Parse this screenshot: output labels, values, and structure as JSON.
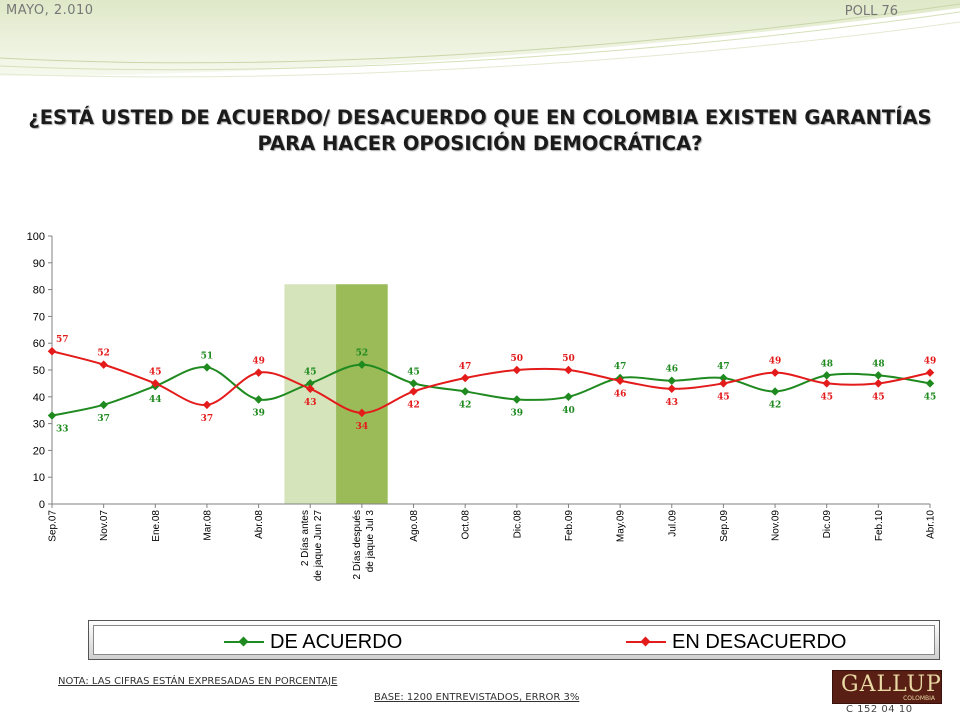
{
  "header": {
    "date": "MAYO, 2.010",
    "poll": "POLL 76"
  },
  "title": "¿ESTÁ USTED DE ACUERDO/ DESACUERDO QUE EN COLOMBIA EXISTEN GARANTÍAS PARA HACER OPOSICIÓN DEMOCRÁTICA?",
  "footer": {
    "note": "NOTA: LAS CIFRAS ESTÁN EXPRESADAS EN PORCENTAJE",
    "base": "BASE: 1200 ENTREVISTADOS, ERROR 3%",
    "logo": "GALLUP",
    "logo_sub": "COLOMBIA",
    "code": "C 152 04 10"
  },
  "chart_data": {
    "type": "line",
    "title": "",
    "xlabel": "",
    "ylabel": "",
    "ylim": [
      0,
      100
    ],
    "yticks": [
      0,
      10,
      20,
      30,
      40,
      50,
      60,
      70,
      80,
      90,
      100
    ],
    "categories": [
      "Sep.07",
      "Nov.07",
      "Ene.08",
      "Mar.08",
      "Abr.08",
      "2 Días antes de jaque Jun 27",
      "2 Días después de jaque Jul 3",
      "Ago.08",
      "Oct.08",
      "Dic.08",
      "Feb.09",
      "May.09",
      "Jul.09",
      "Sep.09",
      "Nov.09",
      "Dic.09",
      "Feb.10",
      "Abr.10"
    ],
    "series": [
      {
        "name": "DE ACUERDO",
        "color": "#1f8a1f",
        "values": [
          33,
          37,
          44,
          51,
          39,
          45,
          52,
          45,
          42,
          39,
          40,
          47,
          46,
          47,
          42,
          48,
          48,
          45
        ]
      },
      {
        "name": "EN DESACUERDO",
        "color": "#e31b1b",
        "values": [
          57,
          52,
          45,
          37,
          49,
          43,
          34,
          42,
          47,
          50,
          50,
          46,
          43,
          45,
          49,
          45,
          45,
          49
        ]
      }
    ],
    "highlight_bands": [
      {
        "category": "2 Días antes de jaque Jun 27",
        "color": "#d6e4bc"
      },
      {
        "category": "2 Días después de jaque Jul 3",
        "color": "#9bbb59"
      }
    ],
    "grid": false,
    "legend_position": "bottom"
  }
}
